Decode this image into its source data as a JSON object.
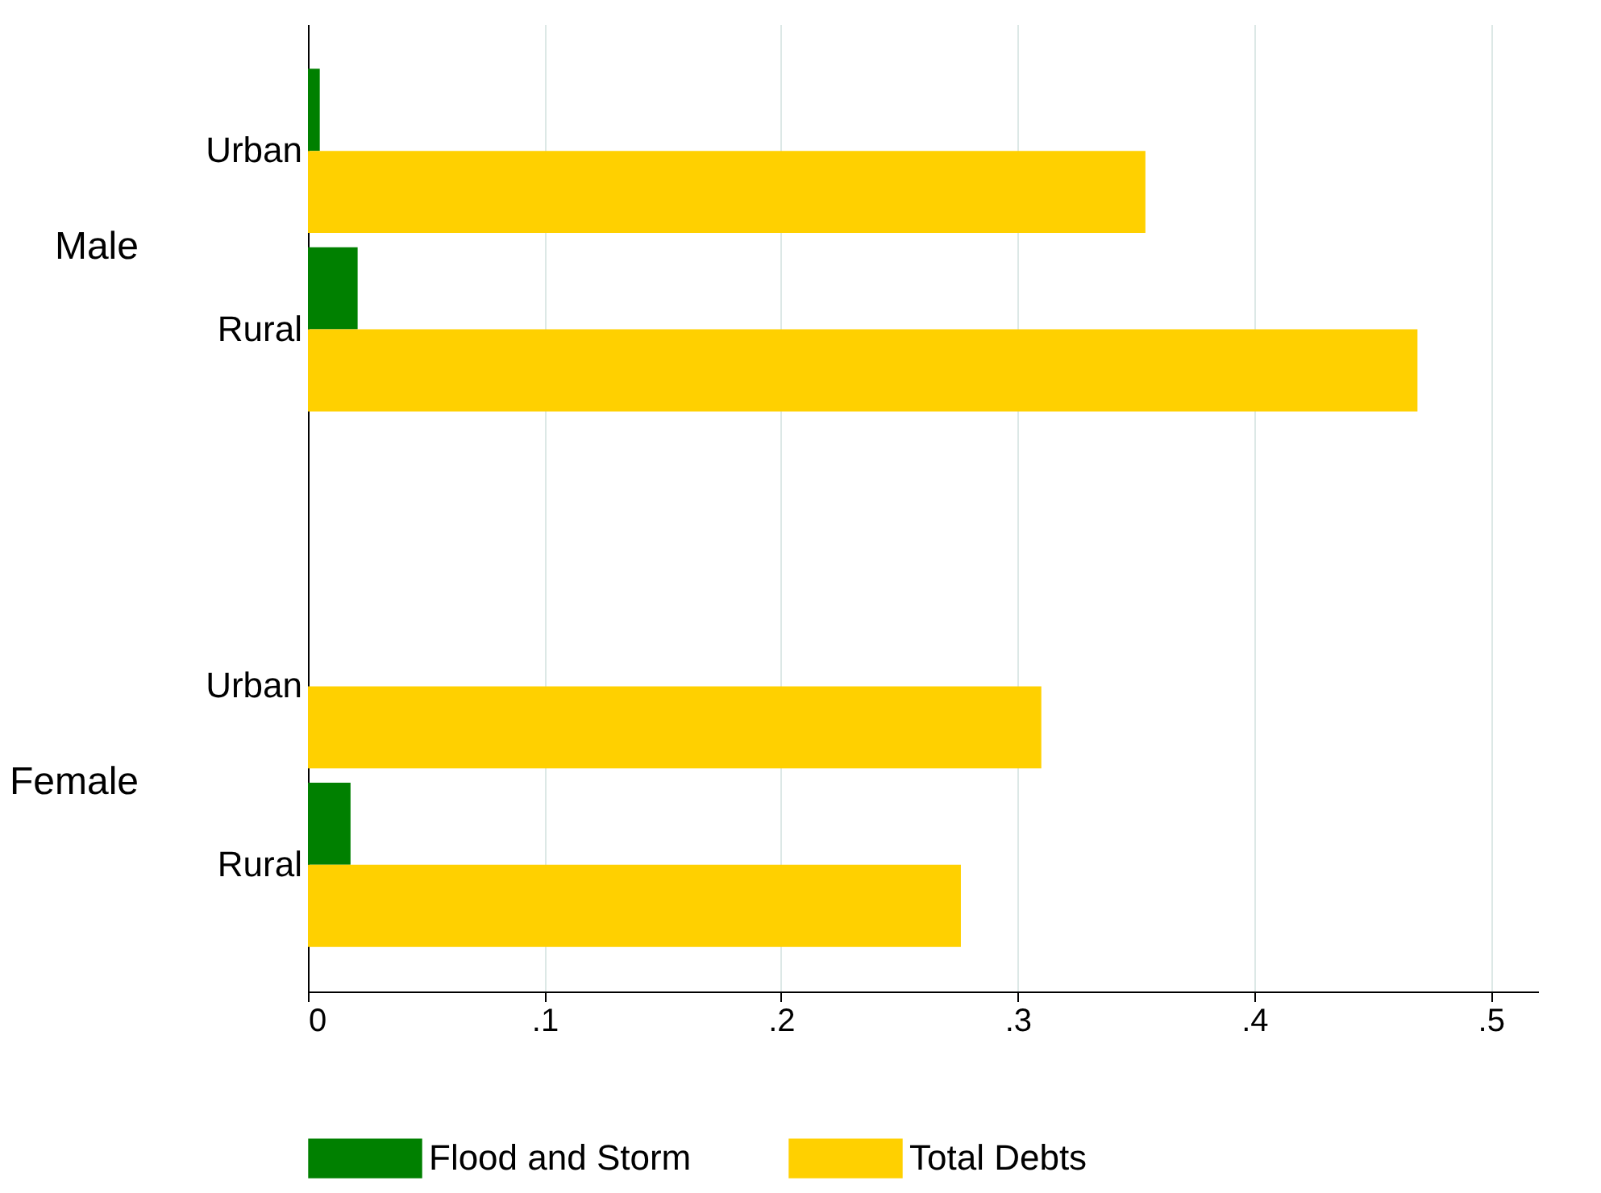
{
  "chart_data": {
    "type": "bar",
    "orientation": "horizontal",
    "categories": [
      "Urban",
      "Rural",
      "Urban",
      "Rural"
    ],
    "series": [
      {
        "name": "Flood and Storm",
        "color": "#008000",
        "values": [
          0.005,
          0.021,
          0,
          0.018
        ]
      },
      {
        "name": "Total Debts",
        "color": "#ffd000",
        "values": [
          0.354,
          0.469,
          0.31,
          0.276
        ]
      }
    ],
    "annotations": [
      "Male",
      "Female"
    ],
    "xlim": [
      0,
      0.52
    ],
    "xticks": [
      0,
      {
        "value": 0.1,
        "label": ".1"
      },
      {
        "value": 0.2,
        "label": ".2"
      },
      {
        "value": 0.3,
        "label": ".3"
      },
      {
        "value": 0.4,
        "label": ".4"
      },
      {
        "value": 0.5,
        "label": ".5"
      }
    ],
    "grid": "x",
    "legend": "bottom"
  }
}
